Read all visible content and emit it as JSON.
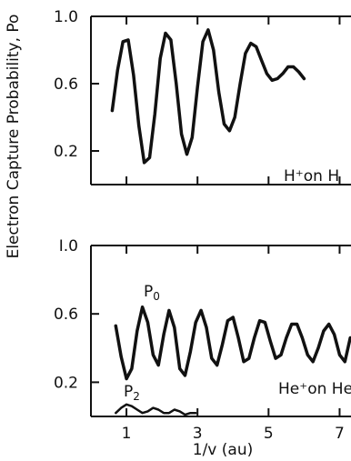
{
  "chart_data": [
    {
      "type": "line",
      "ylabel": "Electron Capture Probability, Po",
      "xlabel": "",
      "yticks": [
        1.0,
        0.6,
        0.2
      ],
      "ytick_labels": [
        "1.0",
        "0.6",
        "0.2"
      ],
      "ylim": [
        0.0,
        1.0
      ],
      "xlim": [
        0.0,
        7.5
      ],
      "annotation": {
        "text": "H⁺on H"
      },
      "series": [
        {
          "x": [
            0.6,
            0.75,
            0.9,
            1.05,
            1.2,
            1.35,
            1.5,
            1.65,
            1.8,
            1.95,
            2.1,
            2.25,
            2.4,
            2.55,
            2.7,
            2.85,
            3.0,
            3.15,
            3.3,
            3.45,
            3.6,
            3.75,
            3.9,
            4.05,
            4.2,
            4.35,
            4.5,
            4.65,
            4.8,
            4.95,
            5.1,
            5.25,
            5.4,
            5.55,
            5.7,
            5.85,
            6.0
          ],
          "y": [
            0.44,
            0.68,
            0.85,
            0.86,
            0.65,
            0.35,
            0.13,
            0.16,
            0.42,
            0.75,
            0.9,
            0.86,
            0.6,
            0.3,
            0.18,
            0.28,
            0.58,
            0.85,
            0.92,
            0.8,
            0.55,
            0.36,
            0.32,
            0.4,
            0.6,
            0.78,
            0.84,
            0.82,
            0.74,
            0.66,
            0.62,
            0.63,
            0.66,
            0.7,
            0.7,
            0.67,
            0.63
          ]
        }
      ]
    },
    {
      "type": "line",
      "ylabel": "",
      "xlabel": "1/v (au)",
      "yticks": [
        1.0,
        0.6,
        0.2
      ],
      "ytick_labels": [
        "I.0",
        "0.6",
        "0.2"
      ],
      "xticks": [
        1,
        3,
        5,
        7
      ],
      "xtick_labels": [
        "1",
        "3",
        "5",
        "7"
      ],
      "ylim": [
        0.0,
        1.0
      ],
      "xlim": [
        0.0,
        7.5
      ],
      "annotation": {
        "text": "He⁺on He"
      },
      "series": [
        {
          "name": "P0",
          "x": [
            0.7,
            0.85,
            1.0,
            1.15,
            1.3,
            1.45,
            1.6,
            1.75,
            1.9,
            2.05,
            2.2,
            2.35,
            2.5,
            2.65,
            2.8,
            2.95,
            3.1,
            3.25,
            3.4,
            3.55,
            3.7,
            3.85,
            4.0,
            4.15,
            4.3,
            4.45,
            4.6,
            4.75,
            4.9,
            5.05,
            5.2,
            5.35,
            5.5,
            5.65,
            5.8,
            5.95,
            6.1,
            6.25,
            6.4,
            6.55,
            6.7,
            6.85,
            7.0,
            7.15,
            7.3
          ],
          "y": [
            0.53,
            0.35,
            0.22,
            0.28,
            0.5,
            0.64,
            0.55,
            0.36,
            0.3,
            0.48,
            0.62,
            0.52,
            0.28,
            0.24,
            0.38,
            0.55,
            0.62,
            0.52,
            0.34,
            0.3,
            0.42,
            0.56,
            0.58,
            0.46,
            0.32,
            0.34,
            0.46,
            0.56,
            0.55,
            0.44,
            0.34,
            0.36,
            0.46,
            0.54,
            0.54,
            0.46,
            0.36,
            0.32,
            0.4,
            0.5,
            0.54,
            0.48,
            0.36,
            0.32,
            0.46
          ]
        },
        {
          "name": "P2",
          "x": [
            0.7,
            0.85,
            1.0,
            1.15,
            1.3,
            1.45,
            1.6,
            1.75,
            1.9,
            2.05,
            2.2,
            2.35,
            2.5,
            2.65,
            2.8,
            2.95
          ],
          "y": [
            0.02,
            0.05,
            0.07,
            0.06,
            0.04,
            0.02,
            0.03,
            0.05,
            0.04,
            0.02,
            0.02,
            0.04,
            0.03,
            0.01,
            0.02,
            0.02
          ]
        }
      ],
      "curve_labels": [
        {
          "text": "P",
          "sub": "0"
        },
        {
          "text": "P",
          "sub": "2"
        }
      ]
    }
  ]
}
